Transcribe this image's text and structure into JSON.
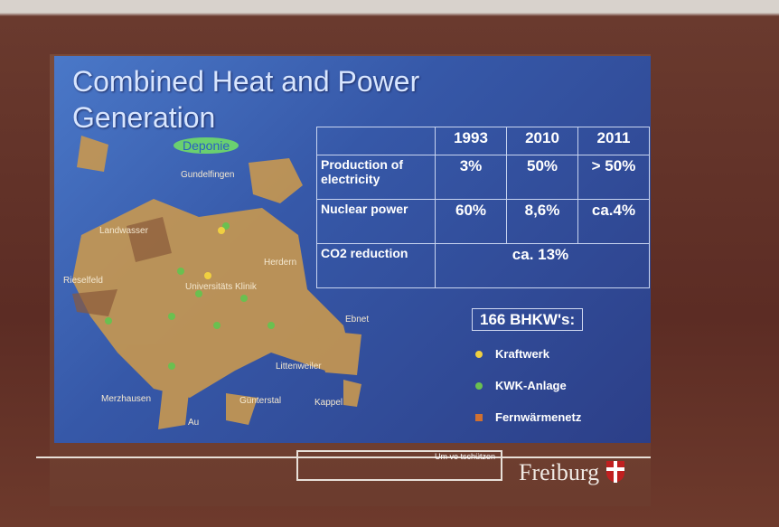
{
  "slide": {
    "title": "Combined Heat and Power Generation",
    "map_labels": [
      "Deponie",
      "Gundelfingen",
      "Landwasser",
      "Rieselfeld",
      "Herdern",
      "Universitäts Klinik",
      "Ebnet",
      "Littenweiler",
      "Merzhausen",
      "Günterstal",
      "Kappel",
      "Au"
    ],
    "table": {
      "header": [
        "1993",
        "2010",
        "2011"
      ],
      "rows": [
        [
          "Production of electricity",
          "3%",
          "50%",
          "> 50%"
        ],
        [
          "Nuclear power",
          "60%",
          "8,6%",
          "ca.4%"
        ],
        [
          "CO2 reduction",
          "ca. 13%"
        ]
      ]
    },
    "legend": {
      "title": "166 BHKW's:",
      "items": [
        "Kraftwerk",
        "KWK-Anlage",
        "Fernwärmenetz"
      ]
    },
    "footer_box": "Um ve tschützen",
    "logo": "Freiburg"
  }
}
